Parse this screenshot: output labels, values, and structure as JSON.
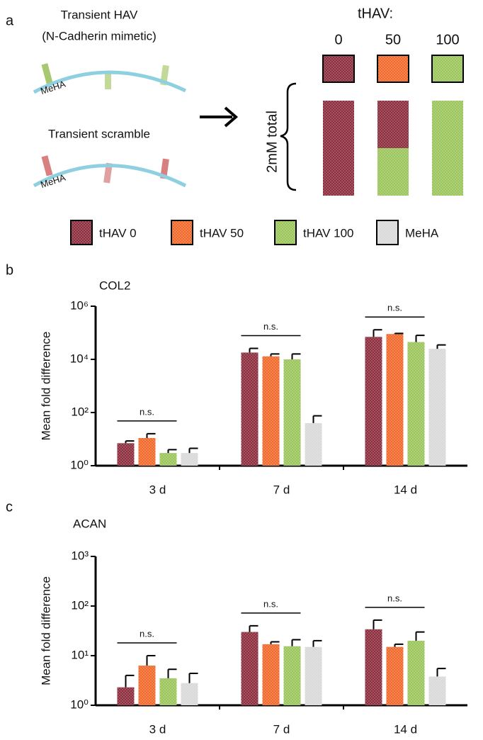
{
  "diagram": {
    "panel_label": "a",
    "hav_title": "Transient HAV",
    "hav_subtitle": "(N-Cadherin mimetic)",
    "hav_backbone": "MeHA",
    "scramble_title": "Transient scramble",
    "scramble_backbone": "MeHA",
    "thav_heading": "tHAV:",
    "thav_levels": [
      "0",
      "50",
      "100"
    ],
    "total_label": "2mM total"
  },
  "chart_data": [
    {
      "type": "bar",
      "panel_label": "b",
      "title": "COL2",
      "ylabel": "Mean fold difference",
      "log_y": true,
      "categories": [
        "3 d",
        "7 d",
        "14 d"
      ],
      "series": [
        {
          "name": "tHAV 0",
          "color": "#8e2f3f",
          "values": [
            7,
            18000,
            70000
          ],
          "errors": [
            1.5,
            8000,
            60000
          ]
        },
        {
          "name": "tHAV 50",
          "color": "#f06a2c",
          "values": [
            11,
            13000,
            90000
          ],
          "errors": [
            5,
            3000,
            5000
          ]
        },
        {
          "name": "tHAV 100",
          "color": "#9cc55c",
          "values": [
            3,
            10000,
            45000
          ],
          "errors": [
            1,
            6000,
            35000
          ]
        },
        {
          "name": "MeHA",
          "color": "#d9d9d9",
          "values": [
            3,
            40,
            25000
          ],
          "errors": [
            1.5,
            35,
            10000
          ]
        }
      ],
      "annotations": [
        "n.s.",
        "n.s.",
        "n.s."
      ],
      "ylim": [
        1,
        1000000
      ],
      "yticks": [
        {
          "value": 1,
          "label": "10⁰"
        },
        {
          "value": 100,
          "label": "10²"
        },
        {
          "value": 10000,
          "label": "10⁴"
        },
        {
          "value": 1000000,
          "label": "10⁶"
        }
      ]
    },
    {
      "type": "bar",
      "panel_label": "c",
      "title": "ACAN",
      "ylabel": "Mean fold difference",
      "log_y": true,
      "categories": [
        "3 d",
        "7 d",
        "14 d"
      ],
      "series": [
        {
          "color": "#8e2f3f",
          "values": [
            2.3,
            30,
            34
          ],
          "errors": [
            1.7,
            10,
            18
          ]
        },
        {
          "color": "#f06a2c",
          "values": [
            6.3,
            17,
            15
          ],
          "errors": [
            3.7,
            2,
            2
          ]
        },
        {
          "color": "#9cc55c",
          "values": [
            3.5,
            15.5,
            20
          ],
          "errors": [
            1.8,
            5.5,
            10
          ]
        },
        {
          "color": "#d9d9d9",
          "values": [
            2.8,
            15,
            3.8
          ],
          "errors": [
            1.6,
            5,
            1.7
          ]
        }
      ],
      "annotations": [
        "n.s.",
        "n.s.",
        "n.s."
      ],
      "ylim": [
        1,
        1000
      ],
      "yticks": [
        {
          "value": 1,
          "label": "10⁰"
        },
        {
          "value": 10,
          "label": "10¹"
        },
        {
          "value": 100,
          "label": "10²"
        },
        {
          "value": 1000,
          "label": "10³"
        }
      ]
    }
  ]
}
